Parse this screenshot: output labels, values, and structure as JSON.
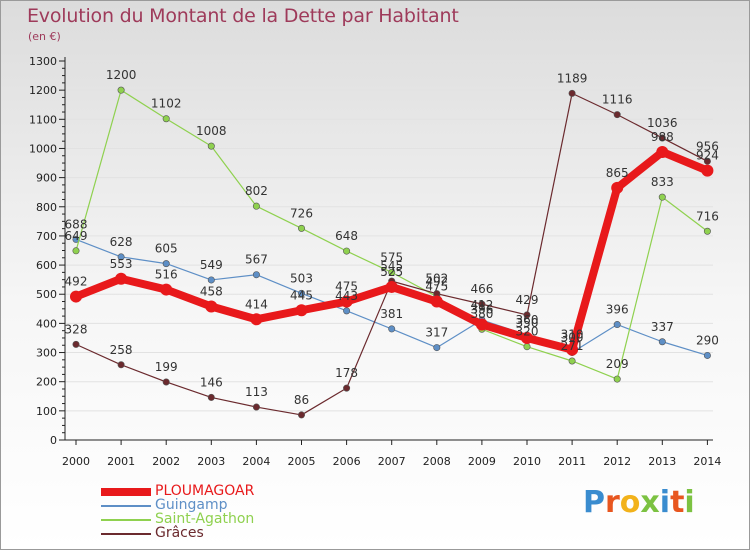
{
  "title": "Evolution du Montant de la Dette par Habitant",
  "subtitle": "(en €)",
  "logo_text": "Proxiti",
  "chart_data": {
    "type": "line",
    "categories": [
      "2000",
      "2001",
      "2002",
      "2003",
      "2004",
      "2005",
      "2006",
      "2007",
      "2008",
      "2009",
      "2010",
      "2011",
      "2012",
      "2013",
      "2014"
    ],
    "ylim": [
      0,
      1300
    ],
    "yticks": [
      0,
      100,
      200,
      300,
      400,
      500,
      600,
      700,
      800,
      900,
      1000,
      1100,
      1200,
      1300
    ],
    "series": [
      {
        "name": "PLOUMAGOAR",
        "color": "#e8191b",
        "emphasis": true,
        "values": [
          492,
          553,
          516,
          458,
          414,
          445,
          475,
          525,
          475,
          396,
          350,
          310,
          865,
          988,
          924
        ],
        "labels": [
          "492",
          "553",
          "516",
          "458",
          "414",
          "445",
          "475",
          "525",
          "475",
          "396",
          "350",
          "310",
          "865",
          "988",
          "924"
        ]
      },
      {
        "name": "Guingamp",
        "color": "#5e8fc6",
        "values": [
          688,
          628,
          605,
          549,
          567,
          503,
          443,
          381,
          317,
          412,
          360,
          300,
          396,
          337,
          290
        ],
        "labels": [
          "688",
          "628",
          "605",
          "549",
          "567",
          "503",
          "443",
          "381",
          "317",
          "412",
          "360",
          "300",
          "396",
          "337",
          "290"
        ]
      },
      {
        "name": "Saint-Agathon",
        "color": "#8fd14f",
        "values": [
          649,
          1200,
          1102,
          1008,
          802,
          726,
          648,
          575,
          492,
          380,
          320,
          271,
          209,
          833,
          716
        ],
        "labels": [
          "649",
          "1200",
          "1102",
          "1008",
          "802",
          "726",
          "648",
          "575",
          "492",
          "380",
          "320",
          "271",
          "209",
          "833",
          "716"
        ]
      },
      {
        "name": "Grâces",
        "color": "#6b2a2e",
        "values": [
          328,
          258,
          199,
          146,
          113,
          86,
          178,
          545,
          502,
          466,
          429,
          1189,
          1116,
          1036,
          956
        ],
        "labels": [
          "328",
          "258",
          "199",
          "146",
          "113",
          "86",
          "178",
          "545",
          "502",
          "466",
          "429",
          "1189",
          "1116",
          "1036",
          "956"
        ]
      }
    ]
  }
}
